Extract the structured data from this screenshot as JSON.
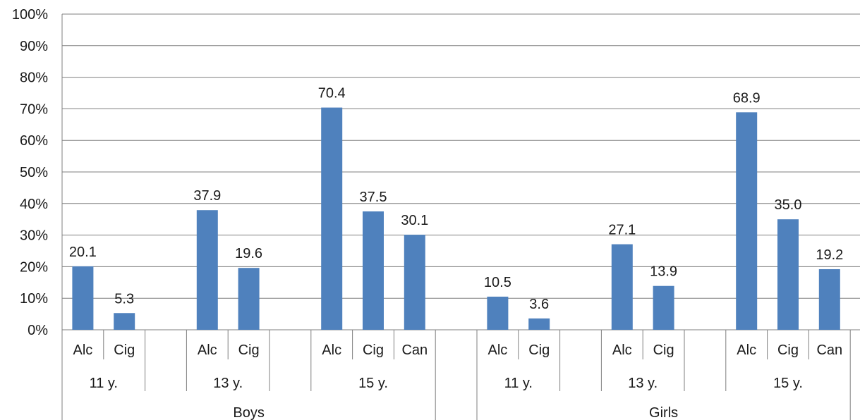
{
  "chart_data": {
    "type": "bar",
    "ylim": [
      0,
      100
    ],
    "yticks": [
      "0%",
      "10%",
      "20%",
      "30%",
      "40%",
      "50%",
      "60%",
      "70%",
      "80%",
      "90%",
      "100%"
    ],
    "grid": true,
    "bar_color": "#4f81bd",
    "groups": [
      {
        "label": "Boys",
        "ages": [
          {
            "label": "11 y.",
            "bars": [
              {
                "label": "Alc",
                "value": 20.1,
                "text": "20.1"
              },
              {
                "label": "Cig",
                "value": 5.3,
                "text": "5.3"
              }
            ]
          },
          {
            "label": "13 y.",
            "bars": [
              {
                "label": "Alc",
                "value": 37.9,
                "text": "37.9"
              },
              {
                "label": "Cig",
                "value": 19.6,
                "text": "19.6"
              }
            ]
          },
          {
            "label": "15 y.",
            "bars": [
              {
                "label": "Alc",
                "value": 70.4,
                "text": "70.4"
              },
              {
                "label": "Cig",
                "value": 37.5,
                "text": "37.5"
              },
              {
                "label": "Can",
                "value": 30.1,
                "text": "30.1"
              }
            ]
          }
        ]
      },
      {
        "label": "Girls",
        "ages": [
          {
            "label": "11 y.",
            "bars": [
              {
                "label": "Alc",
                "value": 10.5,
                "text": "10.5"
              },
              {
                "label": "Cig",
                "value": 3.6,
                "text": "3.6"
              }
            ]
          },
          {
            "label": "13 y.",
            "bars": [
              {
                "label": "Alc",
                "value": 27.1,
                "text": "27.1"
              },
              {
                "label": "Cig",
                "value": 13.9,
                "text": "13.9"
              }
            ]
          },
          {
            "label": "15 y.",
            "bars": [
              {
                "label": "Alc",
                "value": 68.9,
                "text": "68.9"
              },
              {
                "label": "Cig",
                "value": 35.0,
                "text": "35.0"
              },
              {
                "label": "Can",
                "value": 19.2,
                "text": "19.2"
              }
            ]
          }
        ]
      }
    ]
  }
}
